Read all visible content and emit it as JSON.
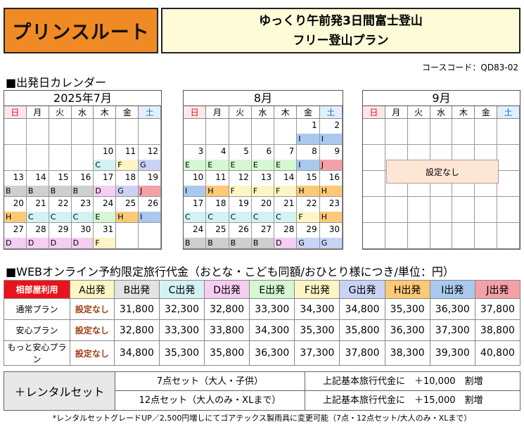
{
  "header": {
    "brand": "プリンスルート",
    "title_line1": "ゆっくり午前発3日間富士登山",
    "title_line2": "フリー登山プラン",
    "course_code": "コースコード：QD83-02"
  },
  "calendar_section_label": "■出発日カレンダー",
  "weekdays": [
    "日",
    "月",
    "火",
    "水",
    "木",
    "金",
    "土"
  ],
  "colors": {
    "A": "#ffffff",
    "B": "#cfcfcf",
    "C": "#d4f2f4",
    "D": "#f6cdf3",
    "E": "#d5f7d2",
    "F": "#fdf6c4",
    "G": "#c9d3f5",
    "H": "#fcc977",
    "I": "#a9c9ee",
    "J": "#f4a0a7",
    "header_red": "#e8141b"
  },
  "calendars": [
    {
      "month": "2025年7月",
      "cells": [
        [
          "",
          ""
        ],
        [
          "",
          ""
        ],
        [
          "",
          ""
        ],
        [
          "",
          ""
        ],
        [
          "",
          ""
        ],
        [
          "",
          ""
        ],
        [
          "",
          ""
        ],
        [
          "",
          ""
        ],
        [
          "",
          ""
        ],
        [
          "",
          ""
        ],
        [
          "",
          ""
        ],
        [
          "10",
          "C"
        ],
        [
          "11",
          "F"
        ],
        [
          "12",
          "G"
        ],
        [
          "13",
          "B"
        ],
        [
          "14",
          "B"
        ],
        [
          "15",
          "B"
        ],
        [
          "16",
          "B"
        ],
        [
          "17",
          "D"
        ],
        [
          "18",
          "G"
        ],
        [
          "19",
          "J"
        ],
        [
          "20",
          "H"
        ],
        [
          "21",
          "C"
        ],
        [
          "22",
          "C"
        ],
        [
          "23",
          "C"
        ],
        [
          "24",
          "E"
        ],
        [
          "25",
          "H"
        ],
        [
          "26",
          "I"
        ],
        [
          "27",
          "D"
        ],
        [
          "28",
          "D"
        ],
        [
          "29",
          "D"
        ],
        [
          "30",
          "D"
        ],
        [
          "31",
          "F"
        ],
        [
          "",
          ""
        ],
        [
          "",
          ""
        ]
      ]
    },
    {
      "month": "8月",
      "cells": [
        [
          "",
          ""
        ],
        [
          "",
          ""
        ],
        [
          "",
          ""
        ],
        [
          "",
          ""
        ],
        [
          "",
          ""
        ],
        [
          "1",
          "I"
        ],
        [
          "2",
          "I"
        ],
        [
          "3",
          "E"
        ],
        [
          "4",
          "E"
        ],
        [
          "5",
          "E"
        ],
        [
          "6",
          "E"
        ],
        [
          "7",
          "E"
        ],
        [
          "8",
          "I"
        ],
        [
          "9",
          "J"
        ],
        [
          "10",
          "I"
        ],
        [
          "11",
          "H"
        ],
        [
          "12",
          "F"
        ],
        [
          "13",
          "F"
        ],
        [
          "14",
          "F"
        ],
        [
          "15",
          "H"
        ],
        [
          "16",
          "H"
        ],
        [
          "17",
          "C"
        ],
        [
          "18",
          "C"
        ],
        [
          "19",
          "C"
        ],
        [
          "20",
          "C"
        ],
        [
          "21",
          "C"
        ],
        [
          "22",
          "F"
        ],
        [
          "23",
          "H"
        ],
        [
          "24",
          "B"
        ],
        [
          "25",
          "B"
        ],
        [
          "26",
          "B"
        ],
        [
          "27",
          "B"
        ],
        [
          "28",
          "D"
        ],
        [
          "29",
          "G"
        ],
        [
          "30",
          "G"
        ]
      ]
    },
    {
      "month": "9月",
      "not_set_label": "設定なし"
    }
  ],
  "price": {
    "section_label": "■WEBオンライン予約限定旅行代金（おとな・こども同額/おひとり様につき/単位：円）",
    "corner_label": "相部屋利用",
    "departures": [
      {
        "label": "A出発",
        "color": "#fdf6c4"
      },
      {
        "label": "B出発",
        "color": "#e3e3e3"
      },
      {
        "label": "C出発",
        "color": "#d4f2f4"
      },
      {
        "label": "D出発",
        "color": "#f6cdf3"
      },
      {
        "label": "E出発",
        "color": "#d5f7d2"
      },
      {
        "label": "F出発",
        "color": "#fdf6c4"
      },
      {
        "label": "G出発",
        "color": "#c9d3f5"
      },
      {
        "label": "H出発",
        "color": "#fcc977"
      },
      {
        "label": "I出発",
        "color": "#a9c9ee"
      },
      {
        "label": "J出発",
        "color": "#f4a0a7"
      }
    ],
    "rows": [
      {
        "plan": "通常プラン",
        "values": [
          "設定なし",
          "31,800",
          "32,300",
          "32,800",
          "33,300",
          "34,300",
          "34,800",
          "35,300",
          "36,300",
          "37,800"
        ]
      },
      {
        "plan": "安心プラン",
        "values": [
          "設定なし",
          "32,800",
          "33,300",
          "33,800",
          "34,300",
          "35,300",
          "35,800",
          "36,300",
          "37,300",
          "38,800"
        ]
      },
      {
        "plan": "もっと安心プラン",
        "values": [
          "設定なし",
          "34,800",
          "35,300",
          "35,800",
          "36,300",
          "37,300",
          "37,800",
          "38,300",
          "39,300",
          "40,800"
        ]
      }
    ]
  },
  "rental": {
    "label": "＋レンタルセット",
    "rows": [
      {
        "set": "7点セット（大人・子供）",
        "add": "上記基本旅行代金に　＋10,000　割増"
      },
      {
        "set": "12点セット（大人のみ・XLまで）",
        "add": "上記基本旅行代金に　＋15,000　割増"
      }
    ],
    "note": "*レンタルセットグレードUP／2,500円増しにてゴアテックス製雨具に変更可能（7点・12点セット/大人のみ・XLまで）"
  }
}
